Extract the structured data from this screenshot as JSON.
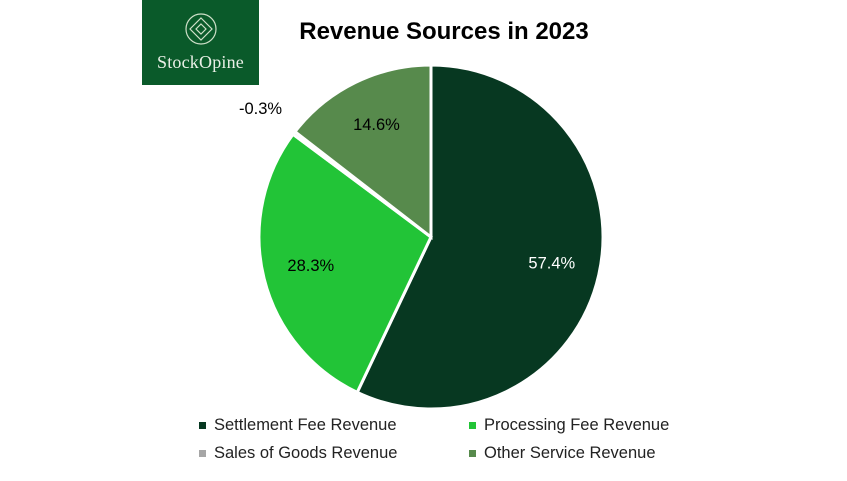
{
  "logo": {
    "text": "StockOpine"
  },
  "colors": {
    "logo_bg": "#0a5a2a",
    "label_dark": "#000000",
    "label_light": "#ffffff"
  },
  "chart_data": {
    "type": "pie",
    "title": "Revenue Sources in 2023",
    "legend_position": "bottom",
    "slices": [
      {
        "name": "Settlement Fee Revenue",
        "value": 57.4,
        "label": "57.4%",
        "color": "#073821"
      },
      {
        "name": "Processing Fee Revenue",
        "value": 28.3,
        "label": "28.3%",
        "color": "#22c437"
      },
      {
        "name": "Sales of Goods Revenue",
        "value": -0.3,
        "label": "-0.3%",
        "color": "#a6a6a6"
      },
      {
        "name": "Other Service Revenue",
        "value": 14.6,
        "label": "14.6%",
        "color": "#578a4c"
      }
    ]
  }
}
